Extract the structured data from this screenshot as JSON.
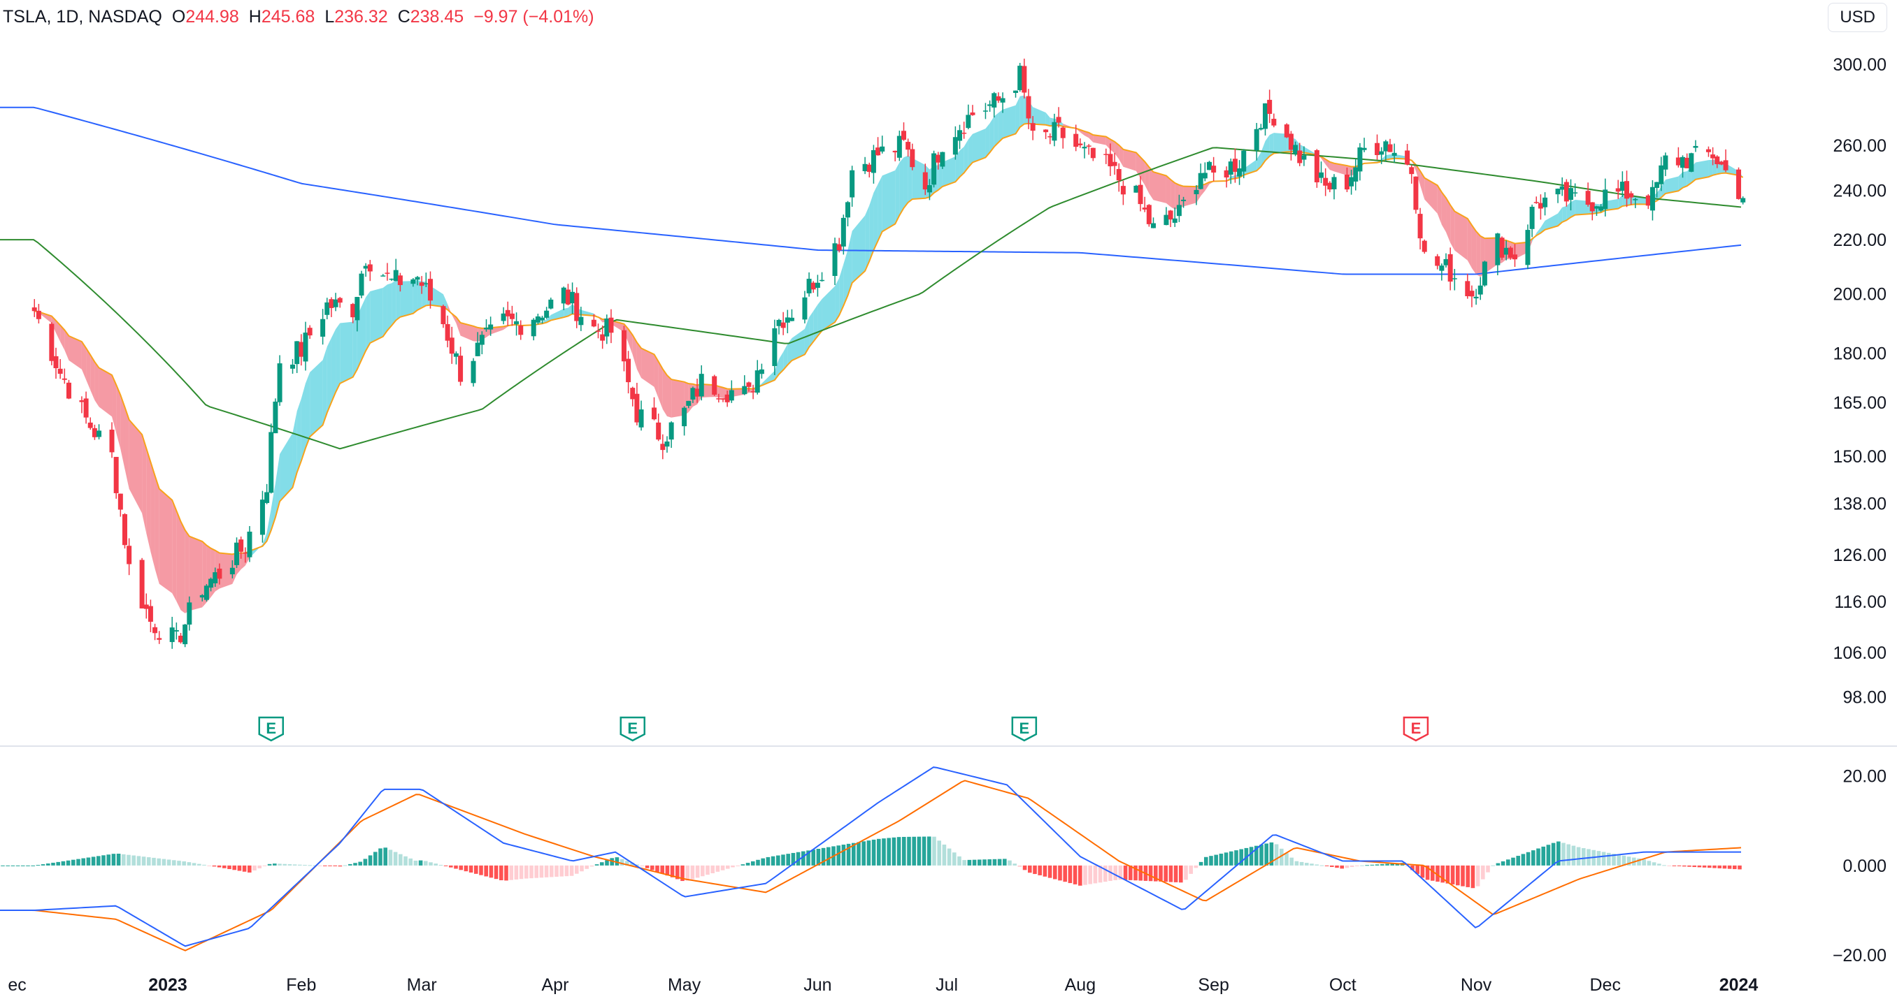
{
  "header": {
    "symbol": "TSLA, 1D, NASDAQ",
    "open_label": "O",
    "open": "244.98",
    "high_label": "H",
    "high": "245.68",
    "low_label": "L",
    "low": "236.32",
    "close_label": "C",
    "close": "238.45",
    "change": "−9.97 (−4.01%)",
    "currency": "USD"
  },
  "colors": {
    "up": "#089981",
    "down": "#f23645",
    "ma_short": "#f7a21b",
    "ma_mid": "#2e8b2e",
    "ma_long": "#2962ff",
    "macd": "#2962ff",
    "signal": "#ff6d00"
  },
  "chart_data": [
    {
      "type": "candlestick",
      "title": "TSLA, 1D, NASDAQ",
      "y_scale": "log",
      "ylim": [
        93,
        318
      ],
      "y_ticks": [
        "300.00",
        "260.00",
        "240.00",
        "220.00",
        "200.00",
        "180.00",
        "165.00",
        "150.00",
        "138.00",
        "126.00",
        "116.00",
        "106.00",
        "98.00"
      ],
      "x_ticks": [
        "ec",
        "2023",
        "Feb",
        "Mar",
        "Apr",
        "May",
        "Jun",
        "Jul",
        "Aug",
        "Sep",
        "Oct",
        "Nov",
        "Dec",
        "2024"
      ],
      "grid": false,
      "earnings_markers": [
        {
          "label": "E",
          "date": "2023-01-25",
          "sentiment": "positive"
        },
        {
          "label": "E",
          "date": "2023-04-19",
          "sentiment": "positive"
        },
        {
          "label": "E",
          "date": "2023-07-19",
          "sentiment": "positive"
        },
        {
          "label": "E",
          "date": "2023-10-18",
          "sentiment": "negative"
        }
      ],
      "close_series": [
        [
          "2022-12-01",
          194
        ],
        [
          "2022-12-07",
          174
        ],
        [
          "2022-12-13",
          160
        ],
        [
          "2022-12-19",
          150
        ],
        [
          "2022-12-23",
          123
        ],
        [
          "2022-12-28",
          112
        ],
        [
          "2023-01-03",
          108
        ],
        [
          "2023-01-09",
          119
        ],
        [
          "2023-01-13",
          122
        ],
        [
          "2023-01-19",
          128
        ],
        [
          "2023-01-24",
          143
        ],
        [
          "2023-01-27",
          178
        ],
        [
          "2023-02-01",
          181
        ],
        [
          "2023-02-07",
          196
        ],
        [
          "2023-02-13",
          195
        ],
        [
          "2023-02-16",
          214
        ],
        [
          "2023-02-22",
          204
        ],
        [
          "2023-02-28",
          206
        ],
        [
          "2023-03-06",
          190
        ],
        [
          "2023-03-10",
          174
        ],
        [
          "2023-03-15",
          183
        ],
        [
          "2023-03-20",
          190
        ],
        [
          "2023-03-24",
          190
        ],
        [
          "2023-03-30",
          195
        ],
        [
          "2023-04-03",
          200
        ],
        [
          "2023-04-10",
          188
        ],
        [
          "2023-04-14",
          187
        ],
        [
          "2023-04-20",
          162
        ],
        [
          "2023-04-26",
          155
        ],
        [
          "2023-05-01",
          162
        ],
        [
          "2023-05-05",
          171
        ],
        [
          "2023-05-10",
          169
        ],
        [
          "2023-05-16",
          167
        ],
        [
          "2023-05-22",
          190
        ],
        [
          "2023-05-26",
          194
        ],
        [
          "2023-06-01",
          207
        ],
        [
          "2023-06-06",
          220
        ],
        [
          "2023-06-09",
          249
        ],
        [
          "2023-06-15",
          256
        ],
        [
          "2023-06-21",
          260
        ],
        [
          "2023-06-26",
          242
        ],
        [
          "2023-06-30",
          262
        ],
        [
          "2023-07-07",
          275
        ],
        [
          "2023-07-13",
          281
        ],
        [
          "2023-07-18",
          294
        ],
        [
          "2023-07-21",
          262
        ],
        [
          "2023-07-27",
          266
        ],
        [
          "2023-08-02",
          256
        ],
        [
          "2023-08-08",
          249
        ],
        [
          "2023-08-14",
          237
        ],
        [
          "2023-08-18",
          224
        ],
        [
          "2023-08-24",
          230
        ],
        [
          "2023-08-29",
          249
        ],
        [
          "2023-09-01",
          246
        ],
        [
          "2023-09-07",
          253
        ],
        [
          "2023-09-12",
          274
        ],
        [
          "2023-09-15",
          275
        ],
        [
          "2023-09-21",
          255
        ],
        [
          "2023-09-27",
          241
        ],
        [
          "2023-10-02",
          244
        ],
        [
          "2023-10-06",
          258
        ],
        [
          "2023-10-11",
          262
        ],
        [
          "2023-10-17",
          249
        ],
        [
          "2023-10-20",
          213
        ],
        [
          "2023-10-26",
          208
        ],
        [
          "2023-10-31",
          200
        ],
        [
          "2023-11-06",
          219
        ],
        [
          "2023-11-10",
          214
        ],
        [
          "2023-11-15",
          235
        ],
        [
          "2023-11-21",
          237
        ],
        [
          "2023-11-27",
          235
        ],
        [
          "2023-12-01",
          238
        ],
        [
          "2023-12-06",
          239
        ],
        [
          "2023-12-12",
          237
        ],
        [
          "2023-12-15",
          253
        ],
        [
          "2023-12-21",
          254
        ],
        [
          "2023-12-26",
          256
        ],
        [
          "2023-12-29",
          248
        ],
        [
          "2024-01-02",
          238
        ]
      ],
      "ema_long": [
        [
          "2022-12-01",
          278
        ],
        [
          "2023-02-01",
          243
        ],
        [
          "2023-04-01",
          226
        ],
        [
          "2023-06-01",
          216
        ],
        [
          "2023-08-01",
          215
        ],
        [
          "2023-10-01",
          207
        ],
        [
          "2023-11-01",
          207
        ],
        [
          "2024-01-02",
          218
        ]
      ],
      "sma_mid": [
        [
          "2022-12-01",
          220
        ],
        [
          "2023-01-10",
          164
        ],
        [
          "2023-02-10",
          152
        ],
        [
          "2023-03-15",
          163
        ],
        [
          "2023-04-15",
          191
        ],
        [
          "2023-05-25",
          183
        ],
        [
          "2023-06-25",
          200
        ],
        [
          "2023-07-25",
          233
        ],
        [
          "2023-09-01",
          259
        ],
        [
          "2023-10-10",
          253
        ],
        [
          "2023-11-15",
          244
        ],
        [
          "2023-12-10",
          237
        ],
        [
          "2024-01-02",
          233
        ]
      ]
    },
    {
      "type": "macd",
      "ylim": [
        -22,
        24
      ],
      "y_ticks": [
        "20.00",
        "0.000",
        "−20.00"
      ],
      "macd": [
        [
          "2022-12-01",
          -10
        ],
        [
          "2022-12-20",
          -9
        ],
        [
          "2023-01-05",
          -18
        ],
        [
          "2023-01-20",
          -14
        ],
        [
          "2023-02-10",
          5
        ],
        [
          "2023-02-20",
          17
        ],
        [
          "2023-03-01",
          17
        ],
        [
          "2023-03-20",
          5
        ],
        [
          "2023-04-05",
          1
        ],
        [
          "2023-04-15",
          3
        ],
        [
          "2023-05-01",
          -7
        ],
        [
          "2023-05-20",
          -4
        ],
        [
          "2023-06-15",
          14
        ],
        [
          "2023-06-28",
          22
        ],
        [
          "2023-07-15",
          18
        ],
        [
          "2023-08-01",
          2
        ],
        [
          "2023-08-25",
          -10
        ],
        [
          "2023-09-15",
          7
        ],
        [
          "2023-10-01",
          1
        ],
        [
          "2023-10-15",
          1
        ],
        [
          "2023-11-01",
          -14
        ],
        [
          "2023-11-20",
          1
        ],
        [
          "2023-12-10",
          3
        ],
        [
          "2024-01-02",
          3
        ]
      ],
      "signal": [
        [
          "2022-12-01",
          -10
        ],
        [
          "2022-12-20",
          -12
        ],
        [
          "2023-01-05",
          -19
        ],
        [
          "2023-01-25",
          -10
        ],
        [
          "2023-02-15",
          10
        ],
        [
          "2023-02-28",
          16
        ],
        [
          "2023-03-25",
          7
        ],
        [
          "2023-04-10",
          2
        ],
        [
          "2023-05-01",
          -3
        ],
        [
          "2023-05-20",
          -6
        ],
        [
          "2023-06-20",
          10
        ],
        [
          "2023-07-05",
          19
        ],
        [
          "2023-07-20",
          15
        ],
        [
          "2023-08-10",
          1
        ],
        [
          "2023-08-30",
          -8
        ],
        [
          "2023-09-20",
          4
        ],
        [
          "2023-10-05",
          1
        ],
        [
          "2023-10-20",
          0
        ],
        [
          "2023-11-05",
          -11
        ],
        [
          "2023-11-25",
          -3
        ],
        [
          "2023-12-15",
          3
        ],
        [
          "2024-01-02",
          4
        ]
      ]
    }
  ]
}
